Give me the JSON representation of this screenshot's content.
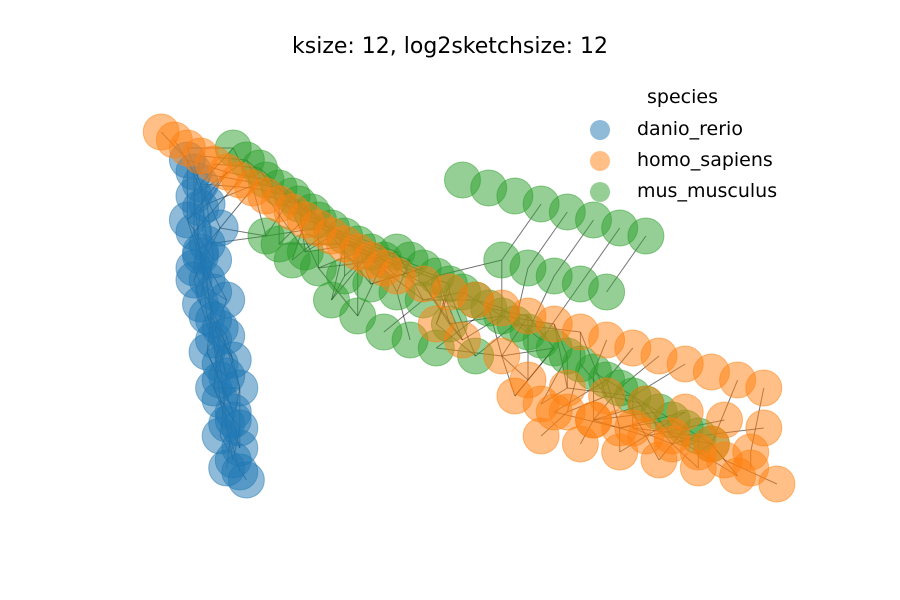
{
  "chart_data": {
    "type": "scatter",
    "title": "ksize: 12, log2sketchsize: 12",
    "legend": {
      "title": "species",
      "placement": "top-right",
      "entries": [
        {
          "label": "danio_rerio",
          "color": "#1f77b4"
        },
        {
          "label": "homo_sapiens",
          "color": "#ff7f0e"
        },
        {
          "label": "mus_musculus",
          "color": "#2ca02c"
        }
      ]
    },
    "axes_visible": false,
    "grid": false,
    "edges_color": "#000000",
    "point_alpha": 0.5,
    "xlim": [
      0,
      100
    ],
    "ylim": [
      0,
      100
    ],
    "series": [
      {
        "name": "danio_rerio",
        "color": "#1f77b4",
        "x": [
          8,
          9,
          10,
          9,
          10,
          8,
          9,
          11,
          10,
          9,
          11,
          12,
          10,
          11,
          13,
          12,
          11,
          13,
          14,
          12,
          13,
          15,
          14,
          13,
          16,
          15,
          14,
          16,
          17,
          15,
          12,
          14,
          13,
          15,
          16,
          11,
          10,
          9,
          12,
          14,
          16,
          13
        ],
        "y": [
          85,
          82,
          79,
          76,
          73,
          70,
          67,
          64,
          61,
          58,
          55,
          52,
          49,
          46,
          43,
          40,
          37,
          34,
          31,
          28,
          25,
          22,
          19,
          16,
          13,
          10,
          8,
          7,
          5,
          20,
          60,
          50,
          68,
          35,
          28,
          74,
          62,
          55,
          45,
          41,
          18,
          30
        ]
      },
      {
        "name": "mus_musculus",
        "color": "#2ca02c",
        "x": [
          15,
          17,
          19,
          20,
          22,
          24,
          25,
          27,
          28,
          30,
          32,
          34,
          36,
          38,
          40,
          42,
          44,
          46,
          48,
          50,
          52,
          54,
          56,
          58,
          60,
          62,
          64,
          66,
          68,
          70,
          72,
          74,
          76,
          78,
          80,
          82,
          84,
          86,
          88,
          50,
          54,
          58,
          62,
          66,
          70,
          74,
          78,
          56,
          60,
          64,
          68,
          72,
          30,
          34,
          38,
          42,
          46,
          48,
          52,
          44,
          40,
          36,
          32,
          28,
          24,
          20,
          26,
          22
        ],
        "y": [
          88,
          85,
          83,
          80,
          78,
          76,
          74,
          72,
          70,
          68,
          66,
          64,
          62,
          60,
          62,
          60,
          58,
          56,
          54,
          52,
          50,
          48,
          46,
          44,
          42,
          40,
          38,
          36,
          34,
          32,
          30,
          28,
          26,
          24,
          22,
          20,
          18,
          16,
          14,
          80,
          78,
          76,
          74,
          72,
          70,
          68,
          66,
          60,
          58,
          56,
          54,
          52,
          50,
          46,
          42,
          40,
          38,
          44,
          36,
          50,
          52,
          54,
          56,
          58,
          60,
          66,
          62,
          64
        ]
      },
      {
        "name": "homo_sapiens",
        "color": "#ff7f0e",
        "x": [
          4,
          6,
          8,
          10,
          12,
          14,
          16,
          18,
          20,
          22,
          24,
          26,
          28,
          30,
          32,
          34,
          36,
          38,
          40,
          44,
          48,
          52,
          56,
          60,
          64,
          68,
          72,
          76,
          80,
          84,
          88,
          92,
          96,
          58,
          62,
          66,
          70,
          74,
          78,
          82,
          86,
          90,
          94,
          60,
          66,
          72,
          78,
          84,
          90,
          96,
          62,
          68,
          74,
          80,
          86,
          92,
          98,
          64,
          70,
          76,
          82,
          88,
          94,
          56,
          50,
          46
        ],
        "y": [
          92,
          90,
          88,
          86,
          84,
          82,
          80,
          78,
          76,
          74,
          72,
          70,
          68,
          66,
          64,
          62,
          60,
          58,
          56,
          54,
          52,
          50,
          48,
          46,
          44,
          42,
          40,
          38,
          36,
          34,
          32,
          30,
          28,
          26,
          24,
          22,
          20,
          18,
          16,
          14,
          12,
          10,
          8,
          30,
          28,
          26,
          24,
          22,
          20,
          18,
          16,
          14,
          12,
          10,
          8,
          6,
          4,
          22,
          20,
          18,
          16,
          14,
          12,
          36,
          40,
          44
        ]
      }
    ]
  }
}
